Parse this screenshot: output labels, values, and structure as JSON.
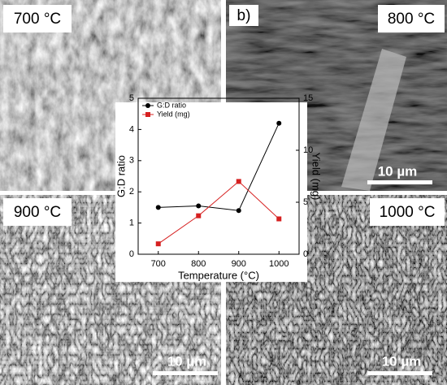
{
  "panels": [
    {
      "label": "700 °C"
    },
    {
      "tag": "b)",
      "label": "800 °C",
      "scale_bar": "10 µm"
    },
    {
      "label": "900 °C",
      "scale_bar": "10 µm"
    },
    {
      "label": "1000 °C",
      "scale_bar": "10 µm"
    }
  ],
  "chart_data": {
    "type": "line",
    "x_label": "Temperature (°C)",
    "y_label": "G:D ratio",
    "y2_label": "Yield (mg)",
    "x": [
      700,
      800,
      900,
      1000
    ],
    "series": [
      {
        "name": "G:D ratio",
        "color": "#000000",
        "marker": "circle",
        "values": [
          1.5,
          1.55,
          1.4,
          4.2
        ]
      },
      {
        "name": "Yield (mg)",
        "color": "#d62020",
        "marker": "square",
        "axis": "y2",
        "values": [
          1.0,
          3.7,
          7.0,
          3.4
        ]
      }
    ],
    "xlim": [
      650,
      1050
    ],
    "xticks": [
      700,
      800,
      900,
      1000
    ],
    "ylim": [
      0,
      5
    ],
    "yticks": [
      0,
      1,
      2,
      3,
      4,
      5
    ],
    "y2lim": [
      0,
      15
    ],
    "y2ticks": [
      0,
      5,
      10,
      15
    ],
    "legend": "upper left"
  }
}
